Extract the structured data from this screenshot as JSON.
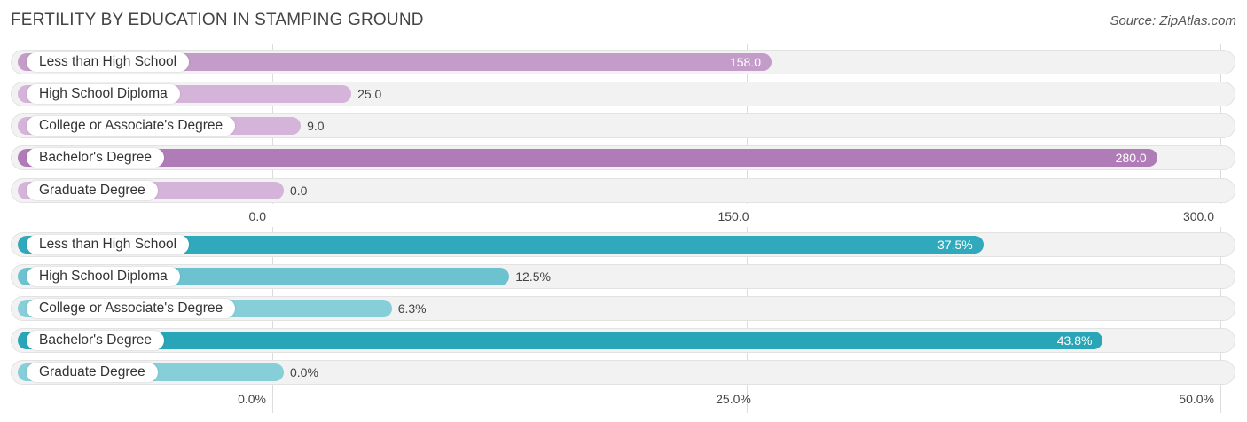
{
  "header": {
    "title": "FERTILITY BY EDUCATION IN STAMPING GROUND",
    "source": "Source: ZipAtlas.com"
  },
  "chart_data": [
    {
      "type": "bar",
      "orientation": "horizontal",
      "title": "FERTILITY BY EDUCATION IN STAMPING GROUND",
      "categories": [
        "Less than High School",
        "High School Diploma",
        "College or Associate's Degree",
        "Bachelor's Degree",
        "Graduate Degree"
      ],
      "values": [
        158.0,
        25.0,
        9.0,
        280.0,
        0.0
      ],
      "value_labels": [
        "158.0",
        "25.0",
        "9.0",
        "280.0",
        "0.0"
      ],
      "xlim": [
        0,
        300
      ],
      "ticks": [
        0,
        150,
        300
      ],
      "tick_labels": [
        "0.0",
        "150.0",
        "300.0"
      ],
      "colors": [
        "#c49cc9",
        "#d4b4d8",
        "#d4b4d8",
        "#b07cb7",
        "#d4b4d8"
      ]
    },
    {
      "type": "bar",
      "orientation": "horizontal",
      "categories": [
        "Less than High School",
        "High School Diploma",
        "College or Associate's Degree",
        "Bachelor's Degree",
        "Graduate Degree"
      ],
      "values": [
        37.5,
        12.5,
        6.3,
        43.8,
        0.0
      ],
      "value_labels": [
        "37.5%",
        "12.5%",
        "6.3%",
        "43.8%",
        "0.0%"
      ],
      "xlim": [
        0,
        50
      ],
      "ticks": [
        0,
        25,
        50
      ],
      "tick_labels": [
        "0.0%",
        "25.0%",
        "50.0%"
      ],
      "colors": [
        "#2fa9bb",
        "#6cc3cf",
        "#86ced8",
        "#28a5b7",
        "#86ced8"
      ]
    }
  ]
}
